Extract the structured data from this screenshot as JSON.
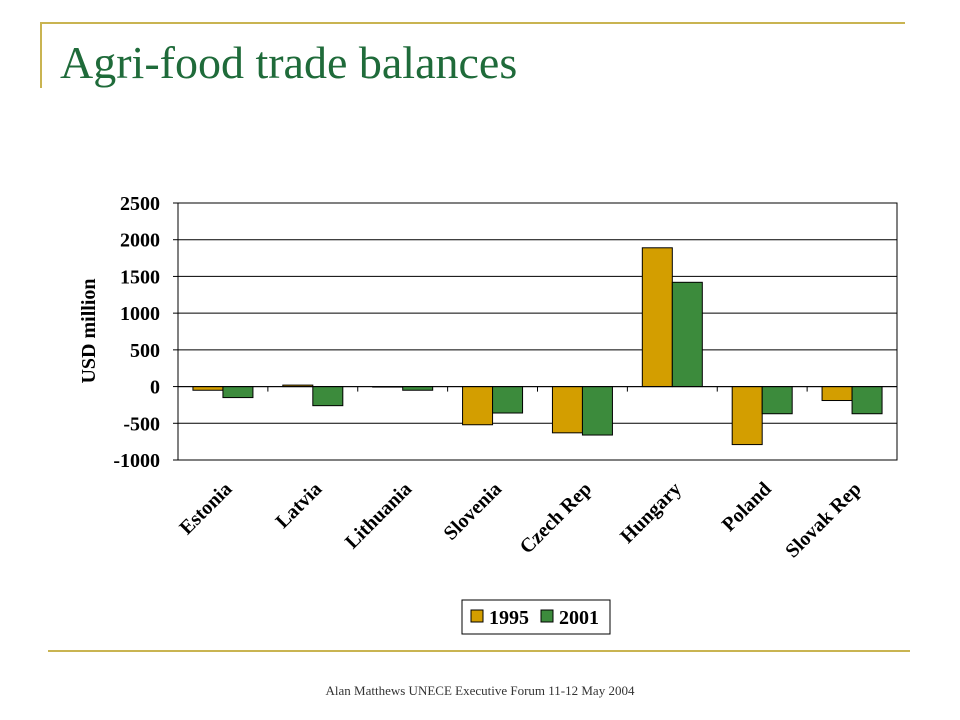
{
  "slide": {
    "title": "Agri-food trade balances",
    "footer": "Alan Matthews UNECE Executive Forum 11-12 May 2004"
  },
  "colors": {
    "frame": "#c9b451",
    "title": "#1f6b3a",
    "series_1995": "#d39e00",
    "series_2001": "#3c8b3c"
  },
  "chart_data": {
    "type": "bar",
    "title": "",
    "xlabel": "",
    "ylabel": "USD million",
    "categories": [
      "Estonia",
      "Latvia",
      "Lithuania",
      "Slovenia",
      "Czech Rep",
      "Hungary",
      "Poland",
      "Slovak Rep"
    ],
    "series": [
      {
        "name": "1995",
        "color": "#d39e00",
        "values": [
          -50,
          20,
          0,
          -520,
          -630,
          1890,
          -790,
          -190
        ]
      },
      {
        "name": "2001",
        "color": "#3c8b3c",
        "values": [
          -150,
          -260,
          -50,
          -360,
          -660,
          1420,
          -370,
          -370
        ]
      }
    ],
    "ylim": [
      -1000,
      2500
    ],
    "yticks": [
      2500,
      2000,
      1500,
      1000,
      500,
      0,
      -500,
      -1000
    ],
    "grid": true,
    "legend_position": "bottom-center"
  }
}
